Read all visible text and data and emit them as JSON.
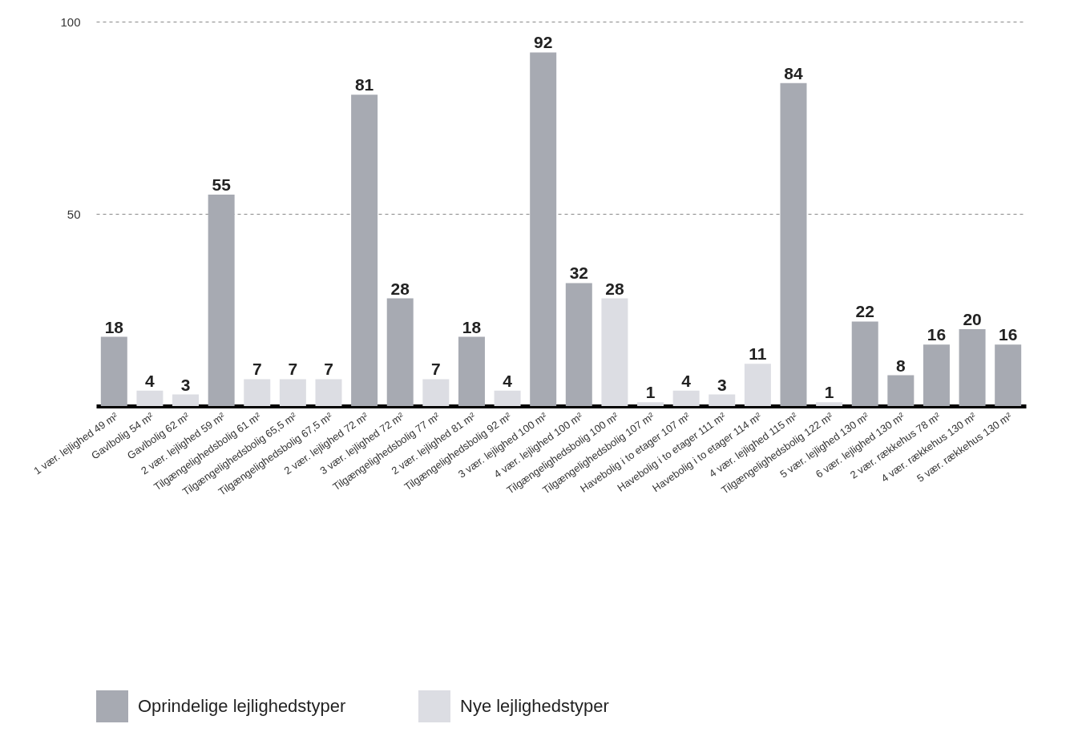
{
  "chart_data": {
    "type": "bar",
    "data_labels": true,
    "grid": "y",
    "legend": "bottom",
    "ylim": [
      0,
      100
    ],
    "yticks": [
      50,
      100
    ],
    "categories": [
      "1 vær. lejlighed 49 m²",
      "Gavlbolig 54 m²",
      "Gavlbolig 62 m²",
      "2 vær. lejlighed 59 m²",
      "Tilgængelighedsbolig 61 m²",
      "Tilgængelighedsbolig 65,5 m²",
      "Tilgængelighedsbolig 67,5 m²",
      "2 vær. lejlighed 72 m²",
      "3 vær. lejlighed 72 m²",
      "Tilgængelighedsbolig 77 m²",
      "2 vær. lejlighed 81 m²",
      "Tilgængelighedsbolig 92 m²",
      "3 vær. lejlighed 100 m²",
      "4 vær. lejlighed 100 m²",
      "Tilgængelighedsbolig 100 m²",
      "Tilgængelighedsbolig 107 m²",
      "Havebolig i to etager 107 m²",
      "Havebolig i to etager 111 m²",
      "Havebolig i to etager 114 m²",
      "4 vær. lejlighed 115 m²",
      "Tilgængelighedsbolig 122 m²",
      "5 vær. lejlighed 130 m²",
      "6 vær. lejlighed 130 m²",
      "2 vær. rækkehus 78 m²",
      "4 vær. rækkehus 130 m²",
      "5 vær. rækkehus 130 m²"
    ],
    "series": [
      {
        "name": "Oprindelige lejlighedstyper",
        "color": "#a7aab2",
        "values": [
          18,
          null,
          null,
          55,
          null,
          null,
          null,
          81,
          28,
          null,
          18,
          null,
          92,
          32,
          null,
          null,
          null,
          null,
          null,
          84,
          null,
          22,
          8,
          16,
          20,
          16
        ]
      },
      {
        "name": "Nye lejlighedstyper",
        "color": "#dcdde3",
        "values": [
          null,
          4,
          3,
          null,
          7,
          7,
          7,
          null,
          null,
          7,
          null,
          4,
          null,
          null,
          28,
          1,
          4,
          3,
          11,
          null,
          1,
          null,
          null,
          null,
          null,
          null
        ]
      }
    ]
  }
}
